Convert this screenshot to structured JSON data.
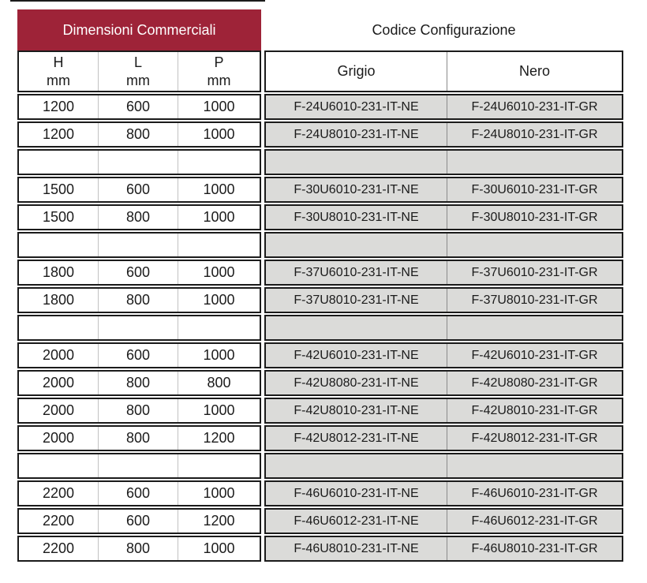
{
  "header": {
    "dimensioni_label": "Dimensioni Commerciali",
    "codice_label": "Codice Configurazione"
  },
  "columns": {
    "h_line1": "H",
    "h_line2": "mm",
    "l_line1": "L",
    "l_line2": "mm",
    "p_line1": "P",
    "p_line2": "mm",
    "grigio": "Grigio",
    "nero": "Nero"
  },
  "colors": {
    "header_red": "#9E2338",
    "code_cell_bg": "#DBDBD9",
    "border_dark": "#1B1B1B",
    "dim_divider": "#C2C2C2",
    "code_divider": "#8A8A8A"
  },
  "rows": [
    {
      "h": "1200",
      "l": "600",
      "p": "1000",
      "grigio": "F-24U6010-231-IT-NE",
      "nero": "F-24U6010-231-IT-GR",
      "spacer": false
    },
    {
      "h": "1200",
      "l": "800",
      "p": "1000",
      "grigio": "F-24U8010-231-IT-NE",
      "nero": "F-24U8010-231-IT-GR",
      "spacer": false
    },
    {
      "h": "",
      "l": "",
      "p": "",
      "grigio": "",
      "nero": "",
      "spacer": true
    },
    {
      "h": "1500",
      "l": "600",
      "p": "1000",
      "grigio": "F-30U6010-231-IT-NE",
      "nero": "F-30U6010-231-IT-GR",
      "spacer": false
    },
    {
      "h": "1500",
      "l": "800",
      "p": "1000",
      "grigio": "F-30U8010-231-IT-NE",
      "nero": "F-30U8010-231-IT-GR",
      "spacer": false
    },
    {
      "h": "",
      "l": "",
      "p": "",
      "grigio": "",
      "nero": "",
      "spacer": true
    },
    {
      "h": "1800",
      "l": "600",
      "p": "1000",
      "grigio": "F-37U6010-231-IT-NE",
      "nero": "F-37U6010-231-IT-GR",
      "spacer": false
    },
    {
      "h": "1800",
      "l": "800",
      "p": "1000",
      "grigio": "F-37U8010-231-IT-NE",
      "nero": "F-37U8010-231-IT-GR",
      "spacer": false
    },
    {
      "h": "",
      "l": "",
      "p": "",
      "grigio": "",
      "nero": "",
      "spacer": true
    },
    {
      "h": "2000",
      "l": "600",
      "p": "1000",
      "grigio": "F-42U6010-231-IT-NE",
      "nero": "F-42U6010-231-IT-GR",
      "spacer": false
    },
    {
      "h": "2000",
      "l": "800",
      "p": "800",
      "grigio": "F-42U8080-231-IT-NE",
      "nero": "F-42U8080-231-IT-GR",
      "spacer": false
    },
    {
      "h": "2000",
      "l": "800",
      "p": "1000",
      "grigio": "F-42U8010-231-IT-NE",
      "nero": "F-42U8010-231-IT-GR",
      "spacer": false
    },
    {
      "h": "2000",
      "l": "800",
      "p": "1200",
      "grigio": "F-42U8012-231-IT-NE",
      "nero": "F-42U8012-231-IT-GR",
      "spacer": false
    },
    {
      "h": "",
      "l": "",
      "p": "",
      "grigio": "",
      "nero": "",
      "spacer": true
    },
    {
      "h": "2200",
      "l": "600",
      "p": "1000",
      "grigio": "F-46U6010-231-IT-NE",
      "nero": "F-46U6010-231-IT-GR",
      "spacer": false
    },
    {
      "h": "2200",
      "l": "600",
      "p": "1200",
      "grigio": "F-46U6012-231-IT-NE",
      "nero": "F-46U6012-231-IT-GR",
      "spacer": false
    },
    {
      "h": "2200",
      "l": "800",
      "p": "1000",
      "grigio": "F-46U8010-231-IT-NE",
      "nero": "F-46U8010-231-IT-GR",
      "spacer": false
    }
  ]
}
